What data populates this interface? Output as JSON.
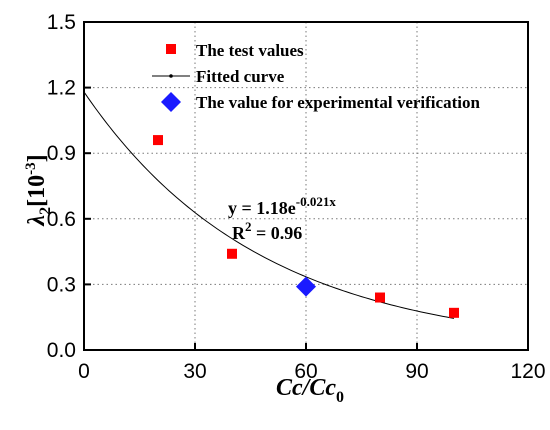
{
  "chart_data": {
    "type": "scatter",
    "xlabel": {
      "main": "Cc/Cc",
      "sub": "0"
    },
    "ylabel": {
      "main": "λ",
      "sub": "2",
      "bracket_open": "[10",
      "sup": "-3",
      "bracket_close": "]"
    },
    "xlim": [
      0,
      120
    ],
    "ylim": [
      0,
      1.5
    ],
    "xticks": [
      0,
      30,
      60,
      90,
      120
    ],
    "yticks": [
      0.0,
      0.3,
      0.6,
      0.9,
      1.2,
      1.5
    ],
    "xtick_labels": [
      "0",
      "30",
      "60",
      "90",
      "120"
    ],
    "ytick_labels": [
      "0.0",
      "0.3",
      "0.6",
      "0.9",
      "1.2",
      "1.5"
    ],
    "grid": "dotted",
    "legend_position": "top",
    "series": [
      {
        "name": "The test values",
        "marker": "square",
        "color": "#ff0000",
        "x": [
          20,
          40,
          80,
          100
        ],
        "y": [
          0.96,
          0.44,
          0.24,
          0.17
        ]
      },
      {
        "name": "Fitted curve",
        "marker": "line",
        "color": "#000000",
        "fit": {
          "a": 1.18,
          "b": -0.021
        },
        "x_range": [
          0,
          100
        ]
      },
      {
        "name": "The value for experimental verification",
        "marker": "diamond",
        "color": "#1a1aff",
        "x": [
          60
        ],
        "y": [
          0.29
        ]
      }
    ],
    "annotations": {
      "equation": {
        "prefix": "y = 1.18e",
        "sup": "-0.021x"
      },
      "r2": {
        "prefix": "R",
        "sup": "2",
        "suffix": " = 0.96"
      }
    }
  }
}
